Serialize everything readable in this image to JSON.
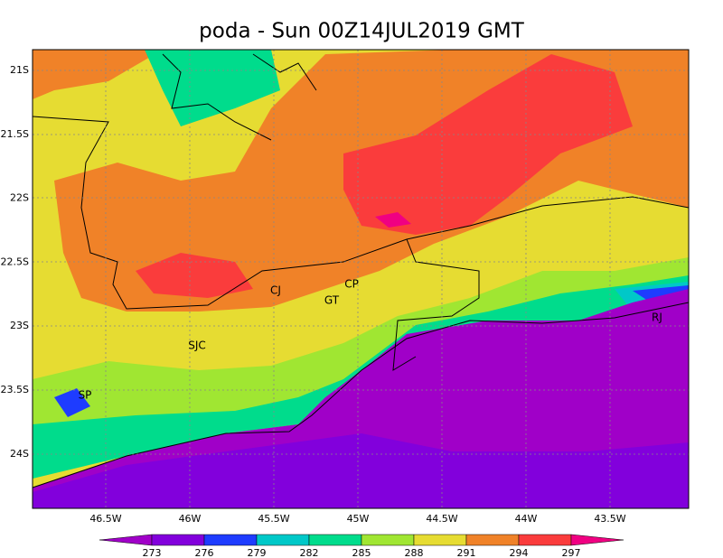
{
  "title": "poda - Sun 00Z14JUL2019 GMT",
  "lon_labels": [
    "46.5W",
    "46W",
    "45.5W",
    "45W",
    "44.5W",
    "44W",
    "43.5W"
  ],
  "lat_labels": [
    "21S",
    "21.5S",
    "22S",
    "22.5S",
    "23S",
    "23.5S",
    "24S"
  ],
  "places": [
    "CJ",
    "CP",
    "GT",
    "SJC",
    "SP",
    "RJ"
  ],
  "colorbar": {
    "levels": [
      273,
      276,
      279,
      282,
      285,
      288,
      291,
      294,
      297
    ],
    "colors": [
      "#a000c8",
      "#8200dc",
      "#1e3cff",
      "#00c8c8",
      "#00dc8c",
      "#a0e632",
      "#e6dc32",
      "#f08228",
      "#fa3c3c",
      "#f00082"
    ]
  }
}
